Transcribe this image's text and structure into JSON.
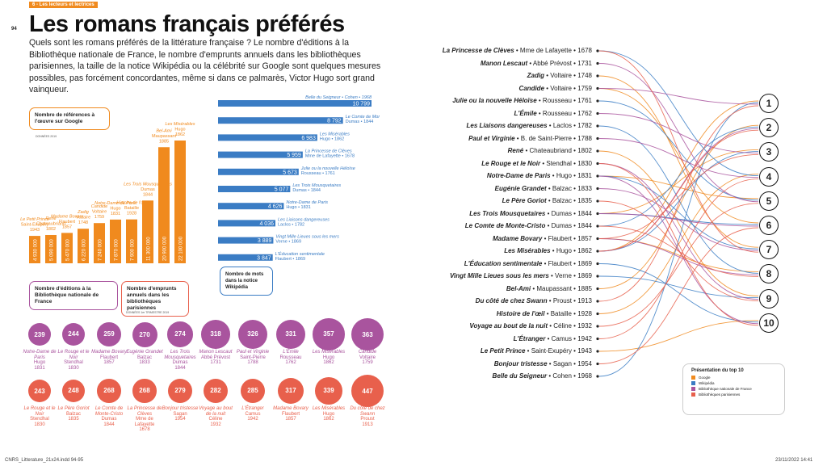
{
  "page": {
    "page_number": "94",
    "section": "6 - Les lecteurs et lectrices",
    "title": "Les romans français préférés",
    "intro": "Quels sont les romans préférés de la littérature française ? Le nombre d'éditions à la Bibliothèque nationale de France, le nombre d'emprunts annuels dans les bibliothèques parisiennes, la taille de la notice Wikipédia ou la célébrité sur Google sont quelques mesures possibles, pas forcément concordantes, même si dans ce palmarès, Victor Hugo sort grand vainqueur.",
    "footer_left": "CNRS_Litterature_21x24.indd   94-95",
    "footer_right": "23/11/2022   14:41"
  },
  "colors": {
    "google": "#f08a1e",
    "wikipedia": "#3a7cc4",
    "bnf": "#a9549e",
    "paris": "#e8604c"
  },
  "chart_data": [
    {
      "type": "bar",
      "label": "Nombre de références à l'œuvre sur Google",
      "source": "DONNÉES 2019",
      "items": [
        {
          "title": "Le Petit Prince",
          "author": "Saint-Exupéry",
          "year": "1943",
          "value": 4930000,
          "value_text": "4 930 000"
        },
        {
          "title": "René",
          "author": "Chateaubriand",
          "year": "1802",
          "value": 5090000,
          "value_text": "5 090 000"
        },
        {
          "title": "Madame Bovary",
          "author": "Flaubert",
          "year": "1857",
          "value": 5470000,
          "value_text": "5 470 000"
        },
        {
          "title": "Zadig",
          "author": "Voltaire",
          "year": "1748",
          "value": 6220000,
          "value_text": "6 220 000"
        },
        {
          "title": "Candide",
          "author": "Voltaire",
          "year": "1759",
          "value": 7240000,
          "value_text": "7 240 000"
        },
        {
          "title": "Notre-Dame de Paris",
          "author": "Hugo",
          "year": "1831",
          "value": 7870000,
          "value_text": "7 870 000"
        },
        {
          "title": "Histoire de l'œil",
          "author": "Bataille",
          "year": "1928",
          "value": 7900000,
          "value_text": "7 900 000"
        },
        {
          "title": "Les Trois Mousquetaires",
          "author": "Dumas",
          "year": "1844",
          "value": 11300000,
          "value_text": "11 300 000"
        },
        {
          "title": "Bel-Ami",
          "author": "Maupassant",
          "year": "1885",
          "value": 20900000,
          "value_text": "20 900 000"
        },
        {
          "title": "Les Misérables",
          "author": "Hugo",
          "year": "1862",
          "value": 22100000,
          "value_text": "22 100 000"
        }
      ]
    },
    {
      "type": "bar",
      "label": "Nombre de mots dans la notice Wikipédia",
      "items": [
        {
          "title": "Belle du Seigneur",
          "author": "Cohen",
          "year": "1968",
          "value": 10799,
          "value_text": "10 799"
        },
        {
          "title": "Le Comte de Monte-Cristo",
          "author": "Dumas",
          "year": "1844",
          "value": 8792,
          "value_text": "8 792"
        },
        {
          "title": "Les Misérables",
          "author": "Hugo",
          "year": "1862",
          "value": 6983,
          "value_text": "6 983"
        },
        {
          "title": "La Princesse de Clèves",
          "author": "Mme de Lafayette",
          "year": "1678",
          "value": 5959,
          "value_text": "5 959"
        },
        {
          "title": "Julie ou la nouvelle Héloïse",
          "author": "Rousseau",
          "year": "1761",
          "value": 5673,
          "value_text": "5 673"
        },
        {
          "title": "Les Trois Mousquetaires",
          "author": "Dumas",
          "year": "1844",
          "value": 5077,
          "value_text": "5 077"
        },
        {
          "title": "Notre-Dame de Paris",
          "author": "Hugo",
          "year": "1831",
          "value": 4626,
          "value_text": "4 626"
        },
        {
          "title": "Les Liaisons dangereuses",
          "author": "Laclos",
          "year": "1782",
          "value": 4036,
          "value_text": "4 036"
        },
        {
          "title": "Vingt Mille Lieues sous les mers",
          "author": "Verne",
          "year": "1869",
          "value": 3889,
          "value_text": "3 889"
        },
        {
          "title": "L'Éducation sentimentale",
          "author": "Flaubert",
          "year": "1869",
          "value": 3847,
          "value_text": "3 847"
        }
      ]
    },
    {
      "type": "bubble",
      "label": "Nombre d'éditions à la Bibliothèque nationale de France",
      "items": [
        {
          "value": "239",
          "title": "Notre-Dame de Paris",
          "author": "Hugo",
          "year": "1831"
        },
        {
          "value": "244",
          "title": "Le Rouge et le Noir",
          "author": "Stendhal",
          "year": "1830"
        },
        {
          "value": "259",
          "title": "Madame Bovary",
          "author": "Flaubert",
          "year": "1857"
        },
        {
          "value": "270",
          "title": "Eugénie Grandet",
          "author": "Balzac",
          "year": "1833"
        },
        {
          "value": "274",
          "title": "Les Trois Mousquetaires",
          "author": "Dumas",
          "year": "1844"
        },
        {
          "value": "318",
          "title": "Manon Lescaut",
          "author": "Abbé Prévost",
          "year": "1731"
        },
        {
          "value": "326",
          "title": "Paul et Virginie",
          "author": "Saint-Pierre",
          "year": "1788"
        },
        {
          "value": "331",
          "title": "L'Émile",
          "author": "Rousseau",
          "year": "1762"
        },
        {
          "value": "357",
          "title": "Les Misérables",
          "author": "Hugo",
          "year": "1862"
        },
        {
          "value": "363",
          "title": "Candide",
          "author": "Voltaire",
          "year": "1759"
        }
      ]
    },
    {
      "type": "bubble",
      "label": "Nombre d'emprunts annuels dans les bibliothèques parisiennes",
      "source": "DONNÉES 1er TRIMESTRE 2019",
      "items": [
        {
          "value": "243",
          "title": "Le Rouge et le Noir",
          "author": "Stendhal",
          "year": "1830"
        },
        {
          "value": "248",
          "title": "Le Père Goriot",
          "author": "Balzac",
          "year": "1835"
        },
        {
          "value": "268",
          "title": "Le Comte de Monte-Cristo",
          "author": "Dumas",
          "year": "1844"
        },
        {
          "value": "268",
          "title": "La Princesse de Clèves",
          "author": "Mme de Lafayette",
          "year": "1678"
        },
        {
          "value": "279",
          "title": "Bonjour tristesse",
          "author": "Sagan",
          "year": "1954"
        },
        {
          "value": "282",
          "title": "Voyage au bout de la nuit",
          "author": "Céline",
          "year": "1932"
        },
        {
          "value": "285",
          "title": "L'Étranger",
          "author": "Camus",
          "year": "1942"
        },
        {
          "value": "317",
          "title": "Madame Bovary",
          "author": "Flaubert",
          "year": "1857"
        },
        {
          "value": "339",
          "title": "Les Misérables",
          "author": "Hugo",
          "year": "1862"
        },
        {
          "value": "447",
          "title": "Du côté de chez Swann",
          "author": "Proust",
          "year": "1913"
        }
      ]
    },
    {
      "type": "slope",
      "ranks": [
        "1",
        "2",
        "3",
        "4",
        "5",
        "6",
        "7",
        "8",
        "9",
        "10"
      ],
      "novels": [
        {
          "title": "La Princesse de Clèves",
          "rest": "• Mme de Lafayette • 1678"
        },
        {
          "title": "Manon Lescaut",
          "rest": "• Abbé Prévost • 1731"
        },
        {
          "title": "Zadig",
          "rest": "• Voltaire • 1748"
        },
        {
          "title": "Candide",
          "rest": "• Voltaire • 1759"
        },
        {
          "title": "Julie ou la nouvelle Héloïse",
          "rest": "• Rousseau • 1761"
        },
        {
          "title": "L'Émile",
          "rest": "• Rousseau • 1762"
        },
        {
          "title": "Les Liaisons dangereuses",
          "rest": "• Laclos • 1782"
        },
        {
          "title": "Paul et Virginie",
          "rest": "• B. de Saint-Pierre • 1788"
        },
        {
          "title": "René",
          "rest": "• Chateaubriand • 1802"
        },
        {
          "title": "Le Rouge et le Noir",
          "rest": "• Stendhal • 1830"
        },
        {
          "title": "Notre-Dame de Paris",
          "rest": "• Hugo • 1831"
        },
        {
          "title": "Eugénie Grandet",
          "rest": "• Balzac • 1833"
        },
        {
          "title": "Le Père Goriot",
          "rest": "• Balzac • 1835"
        },
        {
          "title": "Les Trois Mousquetaires",
          "rest": "• Dumas • 1844"
        },
        {
          "title": "Le Comte de Monte-Cristo",
          "rest": "• Dumas • 1844"
        },
        {
          "title": "Madame Bovary",
          "rest": "• Flaubert • 1857"
        },
        {
          "title": "Les Misérables",
          "rest": "• Hugo • 1862"
        },
        {
          "title": "L'Éducation sentimentale",
          "rest": "• Flaubert • 1869"
        },
        {
          "title": "Vingt Mille Lieues sous les mers",
          "rest": "• Verne • 1869"
        },
        {
          "title": "Bel-Ami",
          "rest": "• Maupassant • 1885"
        },
        {
          "title": "Du côté de chez Swann",
          "rest": "• Proust • 1913"
        },
        {
          "title": "Histoire de l'œil",
          "rest": "• Bataille • 1928"
        },
        {
          "title": "Voyage au bout de la nuit",
          "rest": "• Céline • 1932"
        },
        {
          "title": "L'Étranger",
          "rest": "• Camus • 1942"
        },
        {
          "title": "Le Petit Prince",
          "rest": "• Saint-Exupéry • 1943"
        },
        {
          "title": "Bonjour tristesse",
          "rest": "• Sagan • 1954"
        },
        {
          "title": "Belle du Seigneur",
          "rest": "• Cohen • 1968"
        }
      ],
      "links": {
        "google": [
          [
            24,
            10
          ],
          [
            8,
            9
          ],
          [
            15,
            8
          ],
          [
            2,
            7
          ],
          [
            3,
            6
          ],
          [
            10,
            5
          ],
          [
            21,
            4
          ],
          [
            13,
            3
          ],
          [
            19,
            2
          ],
          [
            16,
            1
          ]
        ],
        "wikipedia": [
          [
            26,
            1
          ],
          [
            14,
            2
          ],
          [
            16,
            3
          ],
          [
            0,
            4
          ],
          [
            4,
            5
          ],
          [
            13,
            6
          ],
          [
            10,
            7
          ],
          [
            6,
            8
          ],
          [
            18,
            9
          ],
          [
            17,
            10
          ]
        ],
        "bnf": [
          [
            10,
            10
          ],
          [
            9,
            9
          ],
          [
            15,
            8
          ],
          [
            11,
            7
          ],
          [
            13,
            6
          ],
          [
            1,
            5
          ],
          [
            7,
            4
          ],
          [
            5,
            3
          ],
          [
            16,
            2
          ],
          [
            3,
            1
          ]
        ],
        "paris": [
          [
            9,
            10
          ],
          [
            12,
            9
          ],
          [
            14,
            8
          ],
          [
            0,
            7
          ],
          [
            25,
            6
          ],
          [
            22,
            5
          ],
          [
            23,
            4
          ],
          [
            15,
            3
          ],
          [
            16,
            2
          ],
          [
            20,
            1
          ]
        ]
      },
      "legend": {
        "title": "Présentation du top 10",
        "google": "Google",
        "wikipedia": "Wikipédia",
        "bnf": "Bibliothèque nationale de France",
        "paris": "Bibliothèques parisiennes"
      }
    }
  ]
}
